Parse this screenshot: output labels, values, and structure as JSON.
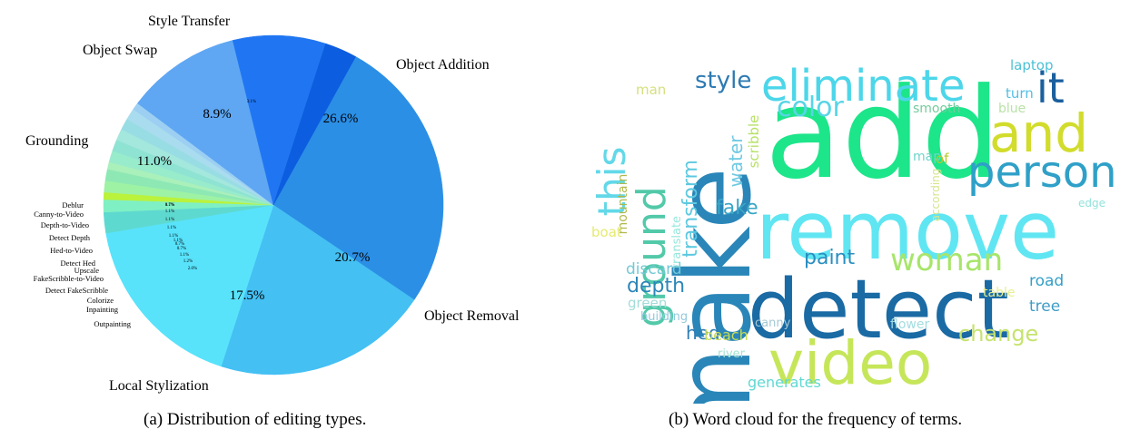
{
  "chart_data": [
    {
      "type": "pie",
      "title": "",
      "caption": "(a) Distribution of editing types.",
      "slices": [
        {
          "name": "Object Addition",
          "value": 26.6,
          "label": "26.6%",
          "color": "#2b8fe6"
        },
        {
          "name": "Object Removal",
          "value": 20.7,
          "label": "20.7%",
          "color": "#44c0f3"
        },
        {
          "name": "Local Stylization",
          "value": 17.5,
          "label": "17.5%",
          "color": "#58e3fb"
        },
        {
          "name": "Outpainting",
          "value": 2.0,
          "label": "2.0%",
          "color": "#5ed9d0"
        },
        {
          "name": "Inpainting",
          "value": 1.2,
          "label": "1.2%",
          "color": "#7ff0c4"
        },
        {
          "name": "Colorize",
          "value": 0.7,
          "label": "0.7%",
          "color": "#baf23c"
        },
        {
          "name": "Detect FakeScribble",
          "value": 1.1,
          "label": "1.1%",
          "color": "#9ef2a4"
        },
        {
          "name": "FakeScribble-to-Video",
          "value": 1.1,
          "label": "1.1%",
          "color": "#8de8b4"
        },
        {
          "name": "Upscale",
          "value": 0.7,
          "label": "0.7%",
          "color": "#a9f0bb"
        },
        {
          "name": "Detect Hed",
          "value": 1.1,
          "label": "1.1%",
          "color": "#98ebcb"
        },
        {
          "name": "Hed-to-Video",
          "value": 1.1,
          "label": "1.1%",
          "color": "#8ee3d2"
        },
        {
          "name": "Detect Depth",
          "value": 1.1,
          "label": "1.1%",
          "color": "#a3e7dd"
        },
        {
          "name": "Depth-to-Video",
          "value": 1.1,
          "label": "1.1%",
          "color": "#99dde4"
        },
        {
          "name": "Canny-to-Video",
          "value": 1.1,
          "label": "1.1%",
          "color": "#a9dcee"
        },
        {
          "name": "Deblur",
          "value": 0.7,
          "label": "0.7%",
          "color": "#9ccff2"
        },
        {
          "name": "Grounding",
          "value": 11.0,
          "label": "11.0%",
          "color": "#5fa7f3"
        },
        {
          "name": "Object Swap",
          "value": 8.9,
          "label": "8.9%",
          "color": "#2076f2"
        },
        {
          "name": "Style Transfer",
          "value": 3.1,
          "label": "3.1%",
          "color": "#0c5ddf"
        }
      ]
    },
    {
      "type": "wordcloud",
      "title": "",
      "caption": "(b) Word cloud for the frequency of terms.",
      "words": [
        {
          "text": "add",
          "color": "#1de58a"
        },
        {
          "text": "make",
          "color": "#2a86b8"
        },
        {
          "text": "remove",
          "color": "#5fe6f2"
        },
        {
          "text": "detect",
          "color": "#1a6aa4"
        },
        {
          "text": "video",
          "color": "#c6e65a"
        },
        {
          "text": "and",
          "color": "#d2dc2c"
        },
        {
          "text": "eliminate",
          "color": "#4cd6e9"
        },
        {
          "text": "person",
          "color": "#2fa0c8"
        },
        {
          "text": "it",
          "color": "#1a5f9e"
        },
        {
          "text": "ground",
          "color": "#52c9a9"
        },
        {
          "text": "this",
          "color": "#62d8e8"
        },
        {
          "text": "woman",
          "color": "#a7e56a"
        },
        {
          "text": "color",
          "color": "#58d5e6"
        },
        {
          "text": "style",
          "color": "#2d7ab2"
        },
        {
          "text": "transform",
          "color": "#5cc9e0"
        },
        {
          "text": "paint",
          "color": "#2a8ec0"
        },
        {
          "text": "change",
          "color": "#c6e36e"
        },
        {
          "text": "depth",
          "color": "#2c86b8"
        },
        {
          "text": "fake",
          "color": "#3aa6c6"
        },
        {
          "text": "water",
          "color": "#6ec9e3"
        },
        {
          "text": "laptop",
          "color": "#4dc0d5"
        },
        {
          "text": "turn",
          "color": "#53bfe4"
        },
        {
          "text": "blue",
          "color": "#b8e2a6"
        },
        {
          "text": "smooth",
          "color": "#73cc9c"
        },
        {
          "text": "man",
          "color": "#d7e07e"
        },
        {
          "text": "scribble",
          "color": "#b8e169"
        },
        {
          "text": "map",
          "color": "#6fd6cb"
        },
        {
          "text": "of",
          "color": "#b7c92f"
        },
        {
          "text": "mountain",
          "color": "#b1b94a"
        },
        {
          "text": "translate",
          "color": "#96e7dd"
        },
        {
          "text": "according",
          "color": "#d7e48c"
        },
        {
          "text": "edge",
          "color": "#92e3dc"
        },
        {
          "text": "boat",
          "color": "#e5ea70"
        },
        {
          "text": "discard",
          "color": "#72c9d6"
        },
        {
          "text": "green",
          "color": "#a3dcd8"
        },
        {
          "text": "building",
          "color": "#92c9dd"
        },
        {
          "text": "canny",
          "color": "#a6c9d3"
        },
        {
          "text": "hed",
          "color": "#2e7fb4"
        },
        {
          "text": "beach",
          "color": "#c7dc57"
        },
        {
          "text": "river",
          "color": "#a7e3d4"
        },
        {
          "text": "flower",
          "color": "#a3dde1"
        },
        {
          "text": "road",
          "color": "#34a0c7"
        },
        {
          "text": "tree",
          "color": "#3f9dc6"
        },
        {
          "text": "table",
          "color": "#e9f08f"
        },
        {
          "text": "generates",
          "color": "#60d8d2"
        }
      ]
    }
  ]
}
